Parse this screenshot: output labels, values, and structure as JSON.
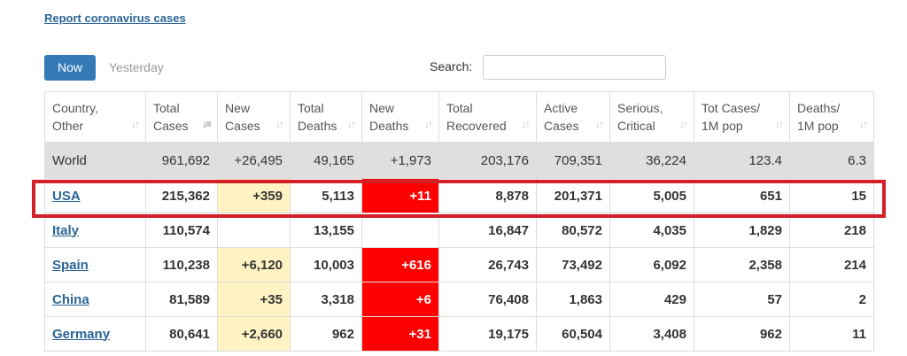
{
  "report_link": "Report coronavirus cases",
  "tabs": {
    "now": "Now",
    "yesterday": "Yesterday"
  },
  "search": {
    "label": "Search:",
    "value": ""
  },
  "columns": [
    {
      "line1": "Country,",
      "line2": "Other"
    },
    {
      "line1": "Total",
      "line2": "Cases"
    },
    {
      "line1": "New",
      "line2": "Cases"
    },
    {
      "line1": "Total",
      "line2": "Deaths"
    },
    {
      "line1": "New",
      "line2": "Deaths"
    },
    {
      "line1": "Total",
      "line2": "Recovered"
    },
    {
      "line1": "Active",
      "line2": "Cases"
    },
    {
      "line1": "Serious,",
      "line2": "Critical"
    },
    {
      "line1": "Tot Cases/",
      "line2": "1M pop"
    },
    {
      "line1": "Deaths/",
      "line2": "1M pop"
    }
  ],
  "sort_icon": "sort-arrows-icon",
  "rows": [
    {
      "country": "World",
      "total_cases": "961,692",
      "new_cases": "+26,495",
      "total_deaths": "49,165",
      "new_deaths": "+1,973",
      "total_recovered": "203,176",
      "active_cases": "709,351",
      "serious_critical": "36,224",
      "tot_cases_1m": "123.4",
      "deaths_1m": "6.3"
    },
    {
      "country": "USA",
      "total_cases": "215,362",
      "new_cases": "+359",
      "total_deaths": "5,113",
      "new_deaths": "+11",
      "total_recovered": "8,878",
      "active_cases": "201,371",
      "serious_critical": "5,005",
      "tot_cases_1m": "651",
      "deaths_1m": "15"
    },
    {
      "country": "Italy",
      "total_cases": "110,574",
      "new_cases": "",
      "total_deaths": "13,155",
      "new_deaths": "",
      "total_recovered": "16,847",
      "active_cases": "80,572",
      "serious_critical": "4,035",
      "tot_cases_1m": "1,829",
      "deaths_1m": "218"
    },
    {
      "country": "Spain",
      "total_cases": "110,238",
      "new_cases": "+6,120",
      "total_deaths": "10,003",
      "new_deaths": "+616",
      "total_recovered": "26,743",
      "active_cases": "73,492",
      "serious_critical": "6,092",
      "tot_cases_1m": "2,358",
      "deaths_1m": "214"
    },
    {
      "country": "China",
      "total_cases": "81,589",
      "new_cases": "+35",
      "total_deaths": "3,318",
      "new_deaths": "+6",
      "total_recovered": "76,408",
      "active_cases": "1,863",
      "serious_critical": "429",
      "tot_cases_1m": "57",
      "deaths_1m": "2"
    },
    {
      "country": "Germany",
      "total_cases": "80,641",
      "new_cases": "+2,660",
      "total_deaths": "962",
      "new_deaths": "+31",
      "total_recovered": "19,175",
      "active_cases": "60,504",
      "serious_critical": "3,408",
      "tot_cases_1m": "962",
      "deaths_1m": "11"
    }
  ],
  "colors": {
    "accent": "#337ab7",
    "link": "#2a6496",
    "new_cases_highlight": "#fff3c4",
    "new_deaths_highlight": "#ff0000",
    "annotation_box": "#d31f26",
    "world_row": "#dfdfdf"
  }
}
